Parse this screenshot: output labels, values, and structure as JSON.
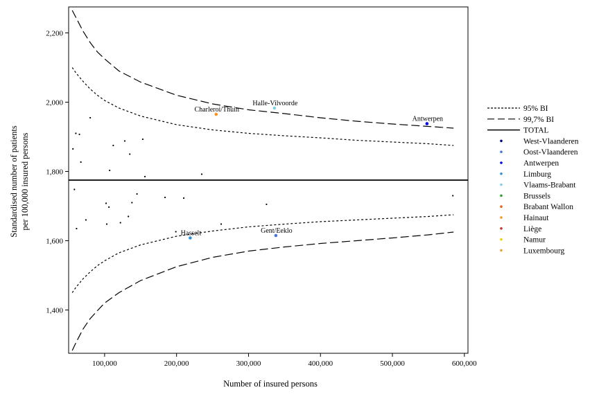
{
  "chart_data": {
    "type": "scatter",
    "title": "",
    "xlabel": "Number of insured persons",
    "ylabel_lines": [
      "Standardised number of patients",
      "per 100,000 insured persons"
    ],
    "xlim": [
      50000,
      605000
    ],
    "ylim": [
      1275,
      2275
    ],
    "x_ticks": [
      100000,
      200000,
      300000,
      400000,
      500000,
      600000
    ],
    "x_tick_labels": [
      "100,000",
      "200,000",
      "300,000",
      "400,000",
      "500,000",
      "600,000"
    ],
    "y_ticks": [
      1400,
      1600,
      1800,
      2000,
      2200
    ],
    "y_tick_labels": [
      "1,400",
      "1,600",
      "1,800",
      "2,000",
      "2,200"
    ],
    "grid": false,
    "legend_position": "right",
    "total": 1775,
    "band_95_x": [
      55000,
      60000,
      70000,
      80000,
      90000,
      100000,
      120000,
      150000,
      200000,
      250000,
      300000,
      350000,
      400000,
      450000,
      500000,
      550000,
      585000
    ],
    "band_95_upper": [
      2100,
      2085,
      2060,
      2038,
      2020,
      2005,
      1983,
      1960,
      1935,
      1920,
      1910,
      1903,
      1897,
      1890,
      1885,
      1880,
      1875
    ],
    "band_95_lower": [
      1450,
      1465,
      1490,
      1510,
      1528,
      1542,
      1565,
      1588,
      1613,
      1628,
      1640,
      1648,
      1655,
      1660,
      1665,
      1670,
      1675
    ],
    "band_997_x": [
      55000,
      60000,
      70000,
      80000,
      90000,
      100000,
      120000,
      150000,
      200000,
      250000,
      300000,
      350000,
      400000,
      450000,
      500000,
      550000,
      585000
    ],
    "band_997_upper": [
      2265,
      2245,
      2205,
      2172,
      2145,
      2125,
      2090,
      2058,
      2020,
      1995,
      1978,
      1967,
      1955,
      1945,
      1937,
      1930,
      1925
    ],
    "band_997_lower": [
      1283,
      1305,
      1345,
      1375,
      1398,
      1420,
      1450,
      1485,
      1525,
      1552,
      1570,
      1582,
      1592,
      1600,
      1608,
      1617,
      1625
    ],
    "other_points": [
      {
        "x": 56000,
        "y": 1865
      },
      {
        "x": 58000,
        "y": 1748
      },
      {
        "x": 60000,
        "y": 1910
      },
      {
        "x": 61000,
        "y": 1635
      },
      {
        "x": 65000,
        "y": 1907
      },
      {
        "x": 67000,
        "y": 1827
      },
      {
        "x": 74000,
        "y": 1660
      },
      {
        "x": 80000,
        "y": 1955
      },
      {
        "x": 102000,
        "y": 1708
      },
      {
        "x": 103000,
        "y": 1648
      },
      {
        "x": 106000,
        "y": 1697
      },
      {
        "x": 107000,
        "y": 1803
      },
      {
        "x": 112000,
        "y": 1875
      },
      {
        "x": 122000,
        "y": 1652
      },
      {
        "x": 128000,
        "y": 1888
      },
      {
        "x": 133000,
        "y": 1670
      },
      {
        "x": 135000,
        "y": 1850
      },
      {
        "x": 138000,
        "y": 1710
      },
      {
        "x": 145000,
        "y": 1735
      },
      {
        "x": 153000,
        "y": 1893
      },
      {
        "x": 156000,
        "y": 1785
      },
      {
        "x": 184000,
        "y": 1725
      },
      {
        "x": 199000,
        "y": 1626
      },
      {
        "x": 210000,
        "y": 1723
      },
      {
        "x": 235000,
        "y": 1792
      },
      {
        "x": 262000,
        "y": 1648
      },
      {
        "x": 325000,
        "y": 1705
      },
      {
        "x": 584000,
        "y": 1730
      }
    ],
    "labeled_points": [
      {
        "label": "Charleroi/Thuin",
        "x": 255000,
        "y": 1965,
        "color": "#f7941d"
      },
      {
        "label": "Halle-Vilvoorde",
        "x": 336000,
        "y": 1983,
        "color": "#87ceeb"
      },
      {
        "label": "Antwerpen",
        "x": 548000,
        "y": 1938,
        "color": "#0000e0"
      },
      {
        "label": "Hasselt",
        "x": 219000,
        "y": 1608,
        "color": "#3090d8"
      },
      {
        "label": "Gent/Eeklo",
        "x": 338000,
        "y": 1615,
        "color": "#4a78d8"
      }
    ],
    "legend": [
      {
        "label": "95% BI",
        "kind": "short-dash"
      },
      {
        "label": "99,7% BI",
        "kind": "long-dash"
      },
      {
        "label": "TOTAL",
        "kind": "solid"
      },
      {
        "label": "West-Vlaanderen",
        "kind": "dot",
        "color": "#000080"
      },
      {
        "label": "Oost-Vlaanderen",
        "kind": "dot",
        "color": "#4a78d8"
      },
      {
        "label": "Antwerpen",
        "kind": "dot",
        "color": "#0000e0"
      },
      {
        "label": "Limburg",
        "kind": "dot",
        "color": "#3090d8"
      },
      {
        "label": "Vlaams-Brabant",
        "kind": "dot",
        "color": "#87ceeb"
      },
      {
        "label": "Brussels",
        "kind": "dot",
        "color": "#2ca02c"
      },
      {
        "label": "Brabant Wallon",
        "kind": "dot",
        "color": "#e2641a"
      },
      {
        "label": "Hainaut",
        "kind": "dot",
        "color": "#f7941d"
      },
      {
        "label": "Liège",
        "kind": "dot",
        "color": "#c0392b"
      },
      {
        "label": "Namur",
        "kind": "dot",
        "color": "#f5d000"
      },
      {
        "label": "Luxembourg",
        "kind": "dot",
        "color": "#f0a030"
      }
    ]
  }
}
